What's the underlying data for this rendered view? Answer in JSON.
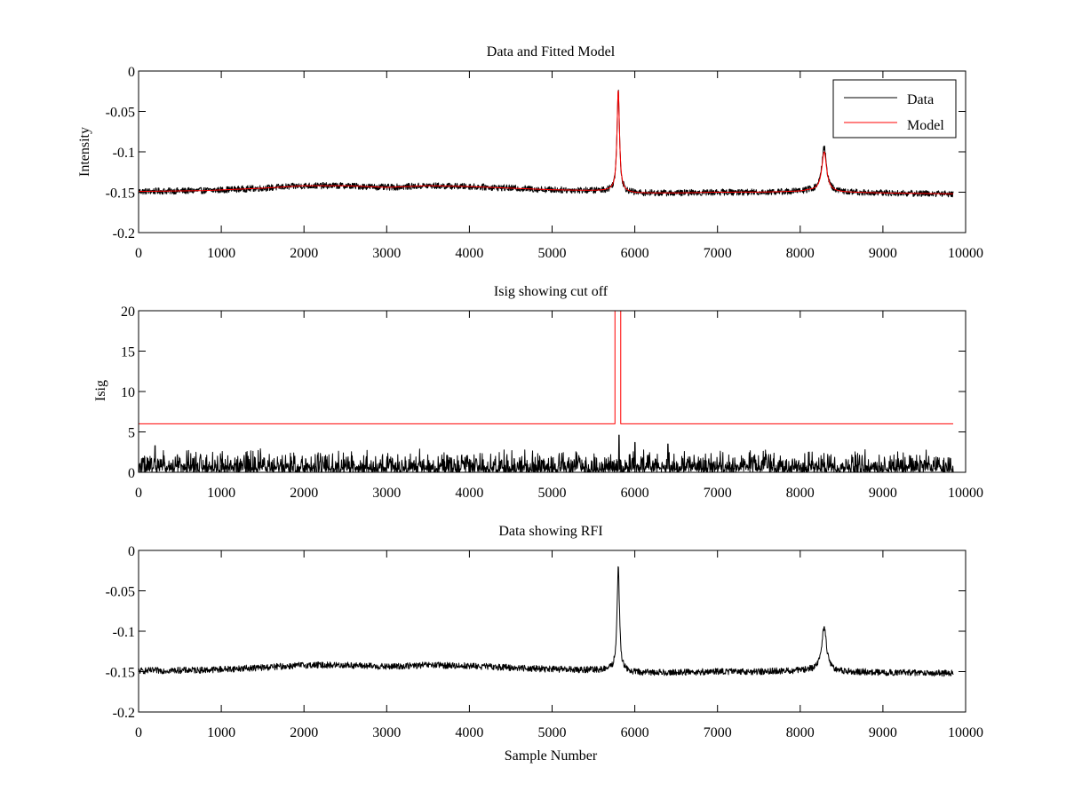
{
  "chart_data": [
    {
      "type": "line",
      "title": "Data and Fitted Model",
      "xlabel": "",
      "ylabel": "Intensity",
      "xlim": [
        0,
        10000
      ],
      "ylim": [
        -0.2,
        0
      ],
      "xticks": [
        0,
        1000,
        2000,
        3000,
        4000,
        5000,
        6000,
        7000,
        8000,
        9000,
        10000
      ],
      "yticks": [
        -0.2,
        -0.15,
        -0.1,
        -0.05,
        0
      ],
      "ytick_labels": [
        "-0.2",
        "-0.15",
        "-0.1",
        "-0.05",
        "0"
      ],
      "legend": {
        "position": "top-right",
        "entries": [
          "Data",
          "Model"
        ]
      },
      "x_extent": [
        0,
        9850
      ],
      "series": [
        {
          "name": "Data",
          "color": "#000000",
          "noise_amplitude": 0.004,
          "baseline": {
            "x": [
              0,
              800,
              1500,
              2000,
              2500,
              3000,
              3500,
              4000,
              4500,
              5000,
              5500,
              5700,
              6000,
              6500,
              7000,
              7500,
              8000,
              8100,
              8500,
              9000,
              9850
            ],
            "y": [
              -0.149,
              -0.148,
              -0.145,
              -0.142,
              -0.142,
              -0.144,
              -0.142,
              -0.143,
              -0.145,
              -0.147,
              -0.148,
              -0.148,
              -0.151,
              -0.151,
              -0.15,
              -0.15,
              -0.149,
              -0.148,
              -0.15,
              -0.151,
              -0.152
            ]
          },
          "peaks": [
            {
              "x": 5800,
              "y": -0.022,
              "width": 18
            },
            {
              "x": 8290,
              "y": -0.095,
              "width": 35
            }
          ]
        },
        {
          "name": "Model",
          "color": "#ff0000",
          "baseline": {
            "x": [
              0,
              800,
              1500,
              2000,
              2500,
              3000,
              3500,
              4000,
              4500,
              5000,
              5500,
              5700,
              6000,
              6500,
              7000,
              7500,
              8000,
              8100,
              8500,
              9000,
              9850
            ],
            "y": [
              -0.149,
              -0.148,
              -0.145,
              -0.142,
              -0.142,
              -0.144,
              -0.142,
              -0.143,
              -0.145,
              -0.147,
              -0.148,
              -0.148,
              -0.151,
              -0.151,
              -0.15,
              -0.15,
              -0.149,
              -0.148,
              -0.15,
              -0.151,
              -0.152
            ]
          },
          "peaks": [
            {
              "x": 5800,
              "y": -0.023,
              "width": 18
            },
            {
              "x": 8290,
              "y": -0.1,
              "width": 35
            }
          ]
        }
      ]
    },
    {
      "type": "line",
      "title": "Isig showing cut off",
      "xlabel": "",
      "ylabel": "Isig",
      "xlim": [
        0,
        10000
      ],
      "ylim": [
        0,
        20
      ],
      "xticks": [
        0,
        1000,
        2000,
        3000,
        4000,
        5000,
        6000,
        7000,
        8000,
        9000,
        10000
      ],
      "yticks": [
        0,
        5,
        10,
        15,
        20
      ],
      "ytick_labels": [
        "0",
        "5",
        "10",
        "15",
        "20"
      ],
      "x_extent": [
        0,
        9850
      ],
      "series": [
        {
          "name": "Isig",
          "color": "#000000",
          "typical_max": 2.5,
          "spikes": [
            {
              "x": 200,
              "y": 3.3
            },
            {
              "x": 5810,
              "y": 4.6
            },
            {
              "x": 6000,
              "y": 3.7
            },
            {
              "x": 6400,
              "y": 3.5
            }
          ]
        },
        {
          "name": "Cut off",
          "color": "#ff0000",
          "x": [
            0,
            5760,
            5760,
            5830,
            5830,
            9850
          ],
          "y": [
            6,
            6,
            20,
            20,
            6,
            6
          ]
        }
      ]
    },
    {
      "type": "line",
      "title": "Data showing RFI",
      "xlabel": "Sample Number",
      "ylabel": "",
      "xlim": [
        0,
        10000
      ],
      "ylim": [
        -0.2,
        0
      ],
      "xticks": [
        0,
        1000,
        2000,
        3000,
        4000,
        5000,
        6000,
        7000,
        8000,
        9000,
        10000
      ],
      "yticks": [
        -0.2,
        -0.15,
        -0.1,
        -0.05,
        0
      ],
      "ytick_labels": [
        "-0.2",
        "-0.15",
        "-0.1",
        "-0.05",
        "0"
      ],
      "x_extent": [
        0,
        9850
      ],
      "series": [
        {
          "name": "Data",
          "color": "#000000",
          "noise_amplitude": 0.004,
          "baseline": {
            "x": [
              0,
              800,
              1500,
              2000,
              2500,
              3000,
              3500,
              4000,
              4500,
              5000,
              5500,
              5700,
              6000,
              6500,
              7000,
              7500,
              8000,
              8100,
              8500,
              9000,
              9850
            ],
            "y": [
              -0.149,
              -0.148,
              -0.145,
              -0.142,
              -0.142,
              -0.144,
              -0.142,
              -0.143,
              -0.145,
              -0.147,
              -0.148,
              -0.148,
              -0.151,
              -0.151,
              -0.15,
              -0.15,
              -0.149,
              -0.148,
              -0.15,
              -0.151,
              -0.152
            ]
          },
          "peaks": [
            {
              "x": 5800,
              "y": -0.022,
              "width": 18
            },
            {
              "x": 8290,
              "y": -0.095,
              "width": 35
            }
          ]
        }
      ]
    }
  ]
}
